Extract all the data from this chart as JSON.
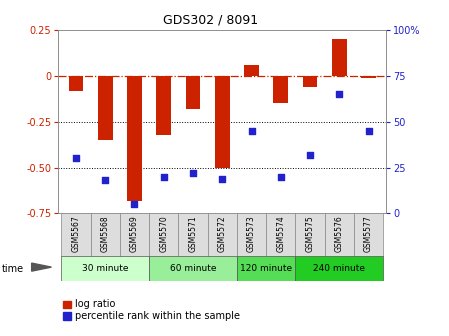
{
  "title": "GDS302 / 8091",
  "samples": [
    "GSM5567",
    "GSM5568",
    "GSM5569",
    "GSM5570",
    "GSM5571",
    "GSM5572",
    "GSM5573",
    "GSM5574",
    "GSM5575",
    "GSM5576",
    "GSM5577"
  ],
  "log_ratio": [
    -0.08,
    -0.35,
    -0.68,
    -0.32,
    -0.18,
    -0.5,
    0.06,
    -0.15,
    -0.06,
    0.2,
    -0.01
  ],
  "percentile": [
    30,
    18,
    5,
    20,
    22,
    19,
    45,
    20,
    32,
    65,
    45
  ],
  "bar_color": "#cc2200",
  "point_color": "#2222cc",
  "ylim_left": [
    -0.75,
    0.25
  ],
  "ylim_right": [
    0,
    100
  ],
  "hline_color": "#cc2200",
  "dotted_levels": [
    -0.25,
    -0.5
  ],
  "groups": [
    {
      "label": "30 minute",
      "start": 0,
      "end": 3,
      "color": "#ccffcc"
    },
    {
      "label": "60 minute",
      "start": 3,
      "end": 6,
      "color": "#99ee99"
    },
    {
      "label": "120 minute",
      "start": 6,
      "end": 8,
      "color": "#55dd55"
    },
    {
      "label": "240 minute",
      "start": 8,
      "end": 11,
      "color": "#22cc22"
    }
  ],
  "time_label": "time",
  "legend_bar_label": "log ratio",
  "legend_point_label": "percentile rank within the sample",
  "background_color": "#ffffff",
  "plot_bg_color": "#ffffff",
  "left_yticks": [
    0.25,
    0,
    -0.25,
    -0.5,
    -0.75
  ],
  "left_yticklabels": [
    "0.25",
    "0",
    "-0.25",
    "-0.50",
    "-0.75"
  ],
  "right_yticks": [
    0,
    25,
    50,
    75,
    100
  ],
  "right_yticklabels": [
    "0",
    "25",
    "50",
    "75",
    "100%"
  ]
}
